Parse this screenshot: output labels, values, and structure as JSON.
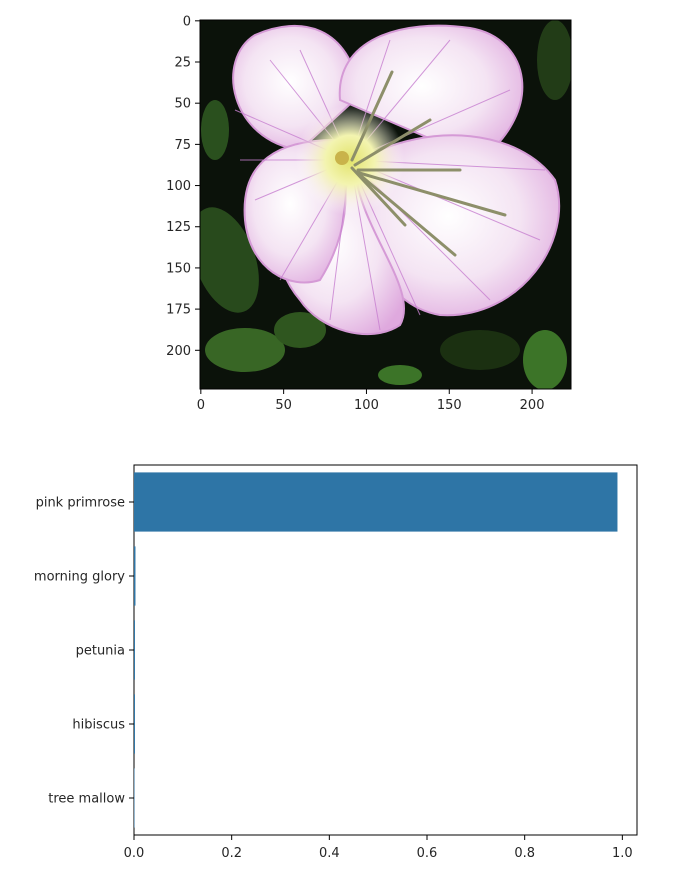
{
  "chart_data": [
    {
      "type": "image",
      "image_name": "pink primrose flower photo",
      "x_ticks": [
        "0",
        "50",
        "100",
        "150",
        "200"
      ],
      "y_ticks": [
        "0",
        "25",
        "50",
        "75",
        "100",
        "125",
        "150",
        "175",
        "200"
      ],
      "xlim": [
        0,
        224
      ],
      "ylim": [
        224,
        0
      ],
      "colors": {
        "petal": "#e7b6e6",
        "petal_vein": "#c77fd0",
        "center": "#f1f2a6",
        "foliage": "#1f3a16",
        "background": "#0b120a"
      }
    },
    {
      "type": "bar",
      "orientation": "horizontal",
      "categories": [
        "pink primrose",
        "morning glory",
        "petunia",
        "hibiscus",
        "tree mallow"
      ],
      "values": [
        0.99,
        0.003,
        0.002,
        0.002,
        0.001
      ],
      "xlim": [
        0.0,
        1.03
      ],
      "x_ticks": [
        "0.0",
        "0.2",
        "0.4",
        "0.6",
        "0.8",
        "1.0"
      ],
      "x_tick_values": [
        0.0,
        0.2,
        0.4,
        0.6,
        0.8,
        1.0
      ],
      "grid": false,
      "colors": {
        "bar": "#2e75a6"
      }
    }
  ]
}
